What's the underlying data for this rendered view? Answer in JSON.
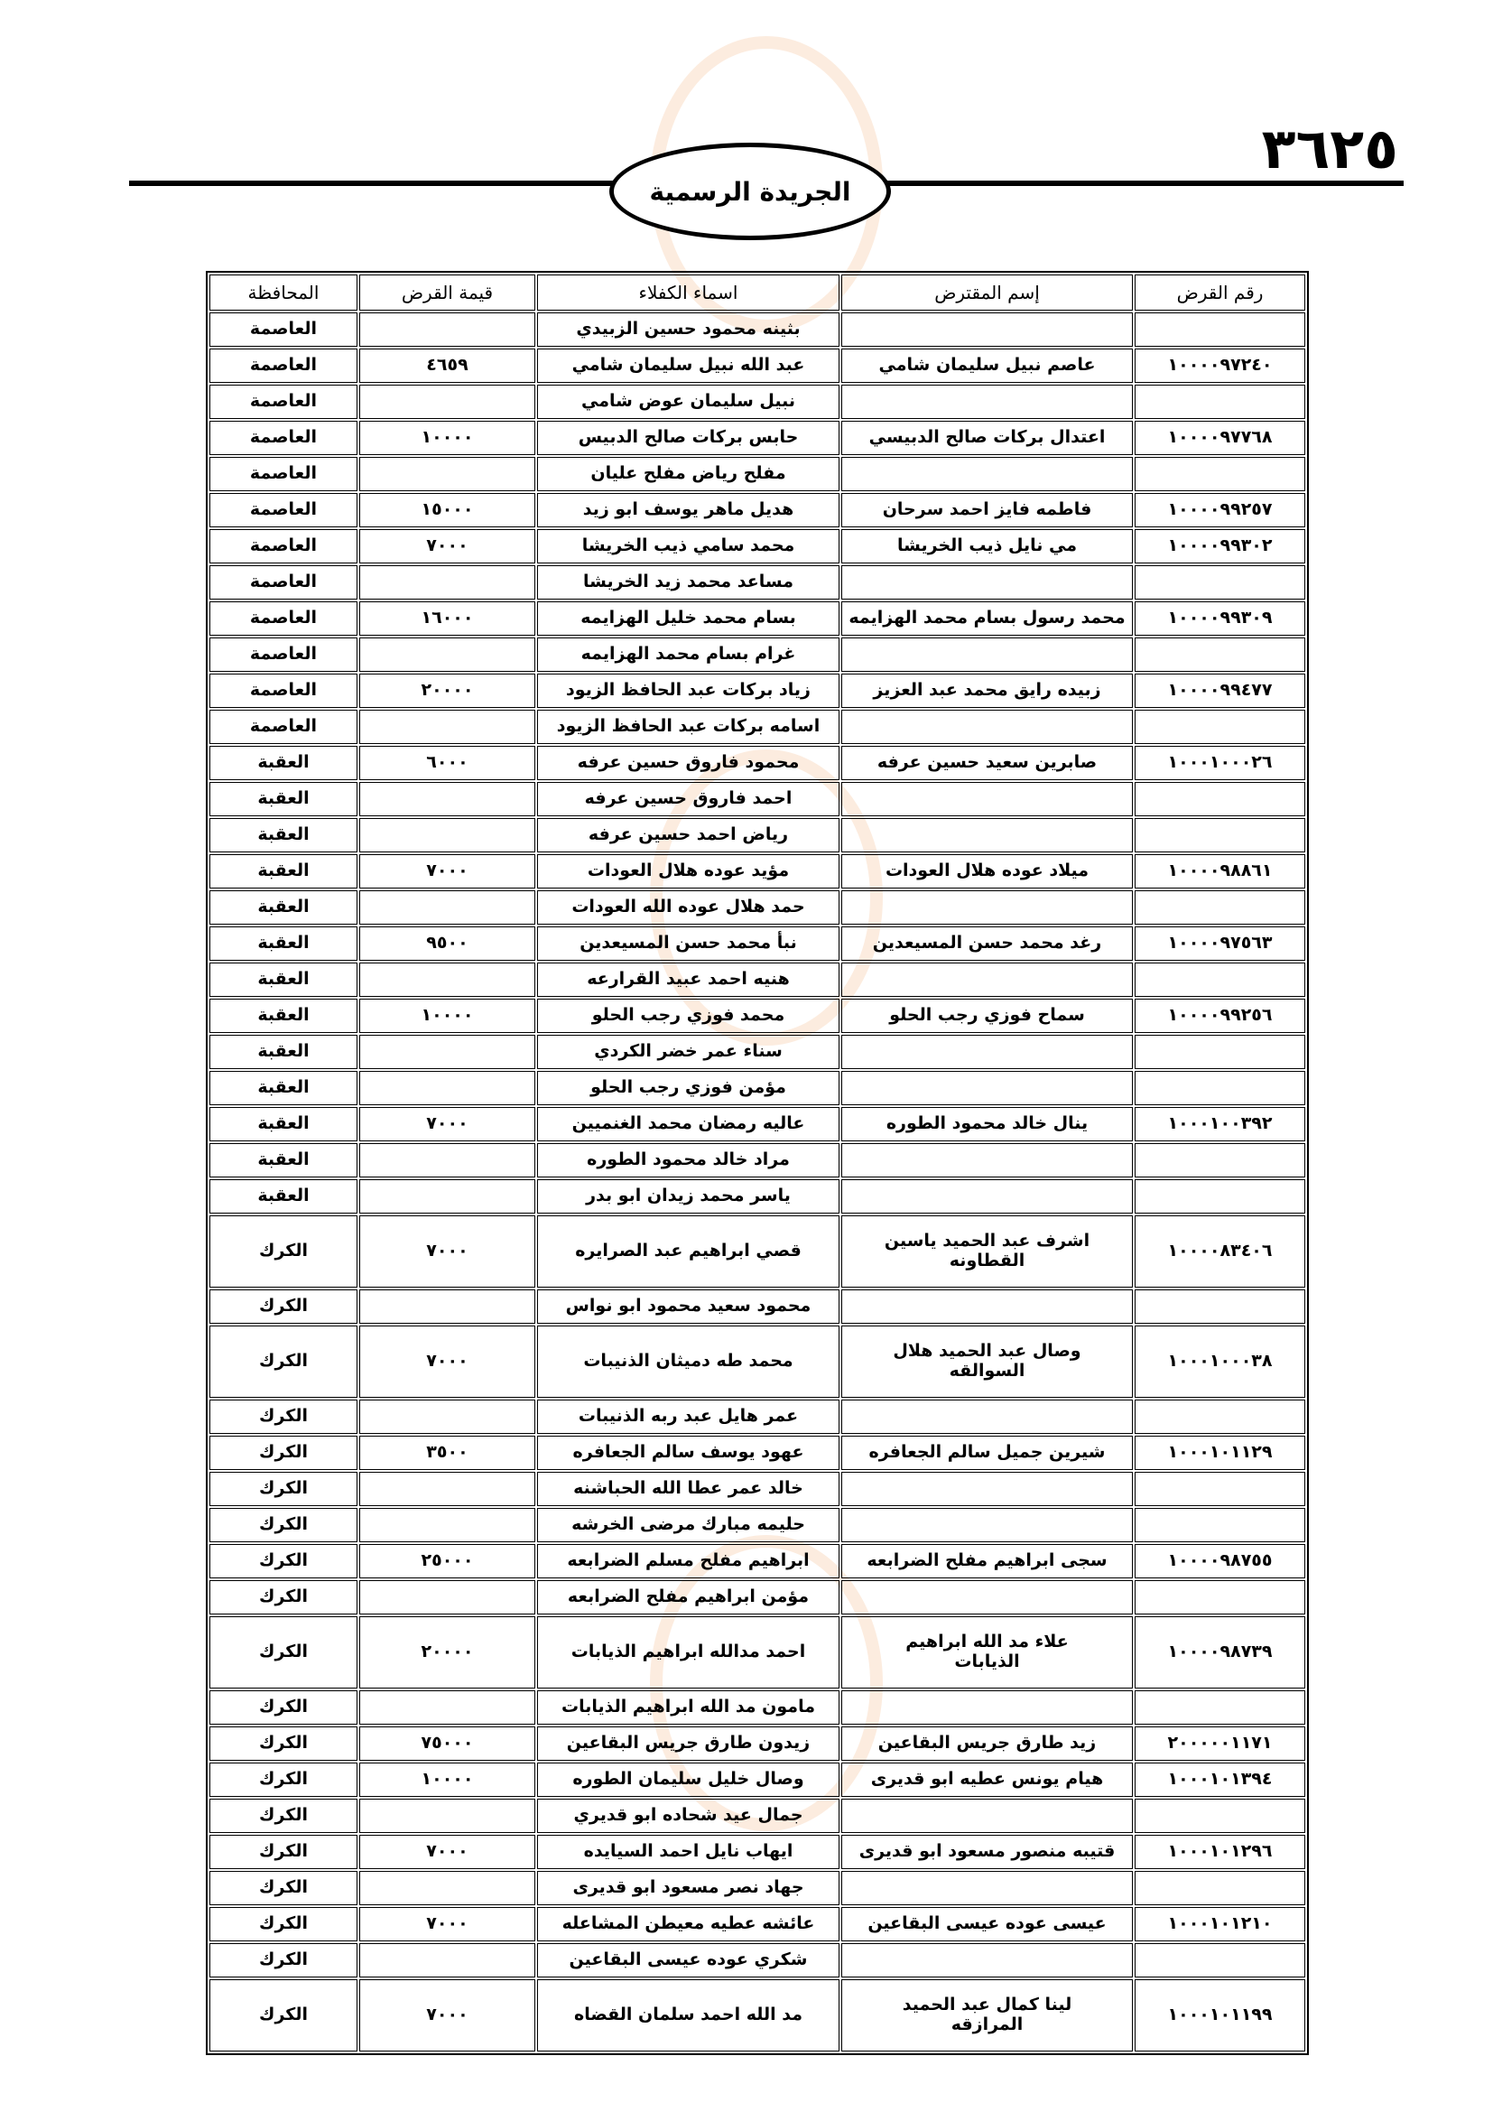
{
  "header": {
    "page_number": "٣٦٢٥",
    "publication_title": "الجريدة الرسمية"
  },
  "table": {
    "columns": [
      "رقم القرض",
      "إسم المقترض",
      "اسماء الكفلاء",
      "قيمة القرض",
      "المحافظة"
    ],
    "rows": [
      {
        "loan_no": "",
        "borrower": "",
        "guarantor": "بثينه محمود حسين الزبيدي",
        "amount": "",
        "governorate": "العاصمة"
      },
      {
        "loan_no": "١٠٠٠٠٩٧٢٤٠",
        "borrower": "عاصم نبيل سليمان شامي",
        "guarantor": "عبد الله نبيل سليمان شامي",
        "amount": "٤٦٥٩",
        "governorate": "العاصمة"
      },
      {
        "loan_no": "",
        "borrower": "",
        "guarantor": "نبيل سليمان عوض شامي",
        "amount": "",
        "governorate": "العاصمة"
      },
      {
        "loan_no": "١٠٠٠٠٩٧٧٦٨",
        "borrower": "اعتدال بركات صالح الدبيسي",
        "guarantor": "حابس بركات صالح الدبيس",
        "amount": "١٠٠٠٠",
        "governorate": "العاصمة"
      },
      {
        "loan_no": "",
        "borrower": "",
        "guarantor": "مفلح رياض مفلح عليان",
        "amount": "",
        "governorate": "العاصمة"
      },
      {
        "loan_no": "١٠٠٠٠٩٩٢٥٧",
        "borrower": "فاطمه فايز احمد سرحان",
        "guarantor": "هديل ماهر يوسف ابو زيد",
        "amount": "١٥٠٠٠",
        "governorate": "العاصمة"
      },
      {
        "loan_no": "١٠٠٠٠٩٩٣٠٢",
        "borrower": "مي نايل ذيب الخريشا",
        "guarantor": "محمد سامي ذيب الخريشا",
        "amount": "٧٠٠٠",
        "governorate": "العاصمة"
      },
      {
        "loan_no": "",
        "borrower": "",
        "guarantor": "مساعد محمد زيد الخريشا",
        "amount": "",
        "governorate": "العاصمة"
      },
      {
        "loan_no": "١٠٠٠٠٩٩٣٠٩",
        "borrower": "محمد رسول بسام محمد الهزايمه",
        "guarantor": "بسام محمد خليل الهزايمه",
        "amount": "١٦٠٠٠",
        "governorate": "العاصمة"
      },
      {
        "loan_no": "",
        "borrower": "",
        "guarantor": "غرام بسام محمد الهزايمه",
        "amount": "",
        "governorate": "العاصمة"
      },
      {
        "loan_no": "١٠٠٠٠٩٩٤٧٧",
        "borrower": "زبيده رايق محمد عبد العزيز",
        "guarantor": "زياد بركات عبد الحافظ الزيود",
        "amount": "٢٠٠٠٠",
        "governorate": "العاصمة"
      },
      {
        "loan_no": "",
        "borrower": "",
        "guarantor": "اسامه بركات عبد الحافظ الزيود",
        "amount": "",
        "governorate": "العاصمة"
      },
      {
        "loan_no": "١٠٠٠١٠٠٠٢٦",
        "borrower": "صابرين سعيد حسين عرفه",
        "guarantor": "محمود فاروق حسين عرفه",
        "amount": "٦٠٠٠",
        "governorate": "العقبة"
      },
      {
        "loan_no": "",
        "borrower": "",
        "guarantor": "احمد فاروق حسين عرفه",
        "amount": "",
        "governorate": "العقبة"
      },
      {
        "loan_no": "",
        "borrower": "",
        "guarantor": "رياض احمد حسين عرفه",
        "amount": "",
        "governorate": "العقبة"
      },
      {
        "loan_no": "١٠٠٠٠٩٨٨٦١",
        "borrower": "ميلاد عوده هلال العودات",
        "guarantor": "مؤيد عوده هلال العودات",
        "amount": "٧٠٠٠",
        "governorate": "العقبة"
      },
      {
        "loan_no": "",
        "borrower": "",
        "guarantor": "حمد هلال عوده الله العودات",
        "amount": "",
        "governorate": "العقبة"
      },
      {
        "loan_no": "١٠٠٠٠٩٧٥٦٣",
        "borrower": "رغد محمد حسن المسيعدين",
        "guarantor": "نبأ محمد حسن المسيعدين",
        "amount": "٩٥٠٠",
        "governorate": "العقبة"
      },
      {
        "loan_no": "",
        "borrower": "",
        "guarantor": "هنيه احمد عبيد القرارعه",
        "amount": "",
        "governorate": "العقبة"
      },
      {
        "loan_no": "١٠٠٠٠٩٩٢٥٦",
        "borrower": "سماح فوزي رجب الحلو",
        "guarantor": "محمد فوزي رجب الحلو",
        "amount": "١٠٠٠٠",
        "governorate": "العقبة"
      },
      {
        "loan_no": "",
        "borrower": "",
        "guarantor": "سناء عمر خضر الكردي",
        "amount": "",
        "governorate": "العقبة"
      },
      {
        "loan_no": "",
        "borrower": "",
        "guarantor": "مؤمن فوزي رجب الحلو",
        "amount": "",
        "governorate": "العقبة"
      },
      {
        "loan_no": "١٠٠٠١٠٠٣٩٢",
        "borrower": "ينال خالد محمود الطوره",
        "guarantor": "عاليه رمضان محمد الغنميين",
        "amount": "٧٠٠٠",
        "governorate": "العقبة"
      },
      {
        "loan_no": "",
        "borrower": "",
        "guarantor": "مراد خالد محمود الطوره",
        "amount": "",
        "governorate": "العقبة"
      },
      {
        "loan_no": "",
        "borrower": "",
        "guarantor": "ياسر محمد زيدان ابو بدر",
        "amount": "",
        "governorate": "العقبة"
      },
      {
        "loan_no": "١٠٠٠٠٨٣٤٠٦",
        "borrower": "اشرف عبد الحميد ياسين القطاونه",
        "guarantor": "قصي ابراهيم عبد الصرايره",
        "amount": "٧٠٠٠",
        "governorate": "الكرك"
      },
      {
        "loan_no": "",
        "borrower": "",
        "guarantor": "محمود سعيد محمود ابو نواس",
        "amount": "",
        "governorate": "الكرك"
      },
      {
        "loan_no": "١٠٠٠١٠٠٠٣٨",
        "borrower": "وصال عبد الحميد هلال السوالقه",
        "guarantor": "محمد طه دميثان الذنيبات",
        "amount": "٧٠٠٠",
        "governorate": "الكرك"
      },
      {
        "loan_no": "",
        "borrower": "",
        "guarantor": "عمر هايل عبد ربه الذنيبات",
        "amount": "",
        "governorate": "الكرك"
      },
      {
        "loan_no": "١٠٠٠١٠١١٢٩",
        "borrower": "شيرين جميل سالم الجعافره",
        "guarantor": "عهود يوسف سالم الجعافره",
        "amount": "٣٥٠٠",
        "governorate": "الكرك"
      },
      {
        "loan_no": "",
        "borrower": "",
        "guarantor": "خالد عمر عطا الله الحباشنه",
        "amount": "",
        "governorate": "الكرك"
      },
      {
        "loan_no": "",
        "borrower": "",
        "guarantor": "حليمه مبارك مرضى الخرشه",
        "amount": "",
        "governorate": "الكرك"
      },
      {
        "loan_no": "١٠٠٠٠٩٨٧٥٥",
        "borrower": "سجى ابراهيم مفلح الضرابعه",
        "guarantor": "ابراهيم مفلح مسلم الضرابعه",
        "amount": "٢٥٠٠٠",
        "governorate": "الكرك"
      },
      {
        "loan_no": "",
        "borrower": "",
        "guarantor": "مؤمن ابراهيم مفلح الضرابعه",
        "amount": "",
        "governorate": "الكرك"
      },
      {
        "loan_no": "١٠٠٠٠٩٨٧٣٩",
        "borrower": "علاء مد الله ابراهيم الذيابات",
        "guarantor": "احمد مدالله ابراهيم الذيابات",
        "amount": "٢٠٠٠٠",
        "governorate": "الكرك"
      },
      {
        "loan_no": "",
        "borrower": "",
        "guarantor": "مامون مد الله ابراهيم الذيابات",
        "amount": "",
        "governorate": "الكرك"
      },
      {
        "loan_no": "٢٠٠٠٠٠١١٧١",
        "borrower": "زيد طارق جريس البقاعين",
        "guarantor": "زيدون طارق جريس البقاعين",
        "amount": "٧٥٠٠٠",
        "governorate": "الكرك"
      },
      {
        "loan_no": "١٠٠٠١٠١٣٩٤",
        "borrower": "هيام يونس عطيه ابو قديرى",
        "guarantor": "وصال خليل سليمان الطوره",
        "amount": "١٠٠٠٠",
        "governorate": "الكرك"
      },
      {
        "loan_no": "",
        "borrower": "",
        "guarantor": "جمال عيد شحاده ابو قديري",
        "amount": "",
        "governorate": "الكرك"
      },
      {
        "loan_no": "١٠٠٠١٠١٢٩٦",
        "borrower": "قتيبه منصور مسعود ابو قديرى",
        "guarantor": "ايهاب نايل احمد السيايده",
        "amount": "٧٠٠٠",
        "governorate": "الكرك"
      },
      {
        "loan_no": "",
        "borrower": "",
        "guarantor": "جهاد نصر مسعود ابو قديرى",
        "amount": "",
        "governorate": "الكرك"
      },
      {
        "loan_no": "١٠٠٠١٠١٢١٠",
        "borrower": "عيسى عوده عيسى البقاعين",
        "guarantor": "عائشه عطيه معيطن المشاعله",
        "amount": "٧٠٠٠",
        "governorate": "الكرك"
      },
      {
        "loan_no": "",
        "borrower": "",
        "guarantor": "شكري عوده عيسى البقاعين",
        "amount": "",
        "governorate": "الكرك"
      },
      {
        "loan_no": "١٠٠٠١٠١١٩٩",
        "borrower": "لينا كمال عبد الحميد المرازقه",
        "guarantor": "مد الله احمد سلمان القضاه",
        "amount": "٧٠٠٠",
        "governorate": "الكرك"
      }
    ]
  }
}
